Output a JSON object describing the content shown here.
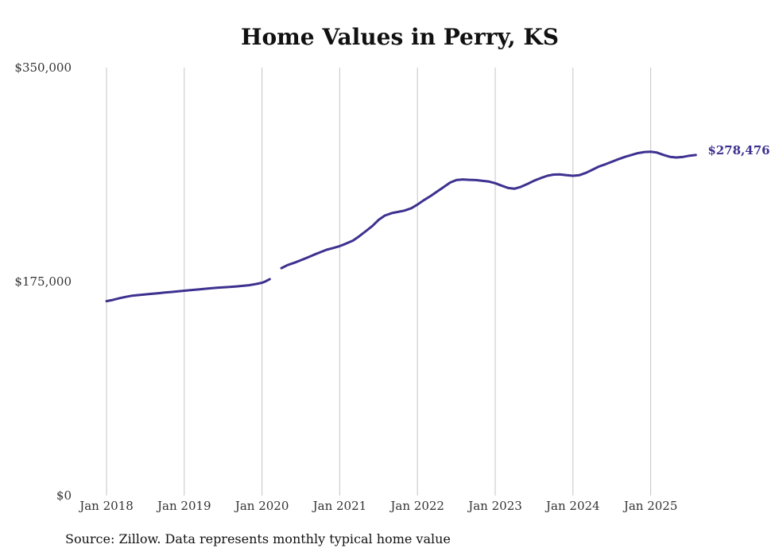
{
  "chart_data": {
    "type": "line",
    "title": "Home Values in Perry, KS",
    "xlabel": "",
    "ylabel": "",
    "ylim": [
      0,
      350000
    ],
    "y_ticks": [
      "$350,000",
      "$175,000",
      "$0"
    ],
    "y_tick_values": [
      350000,
      175000,
      0
    ],
    "x_ticks": [
      "Jan 2018",
      "Jan 2019",
      "Jan 2020",
      "Jan 2021",
      "Jan 2022",
      "Jan 2023",
      "Jan 2024",
      "Jan 2025"
    ],
    "x_tick_values": [
      2018.0,
      2019.0,
      2020.0,
      2021.0,
      2022.0,
      2023.0,
      2024.0,
      2025.0
    ],
    "xlim": [
      2018.0,
      2025.58
    ],
    "grid": "vertical",
    "line_color": "#3d3190",
    "end_label": "$278,476",
    "series": [
      {
        "segments": [
          [
            [
              2018.0,
              159000
            ],
            [
              2018.08,
              160000
            ],
            [
              2018.17,
              161500
            ],
            [
              2018.25,
              162500
            ],
            [
              2018.33,
              163500
            ],
            [
              2018.42,
              164000
            ],
            [
              2018.5,
              164500
            ],
            [
              2018.58,
              165000
            ],
            [
              2018.67,
              165500
            ],
            [
              2018.75,
              166000
            ],
            [
              2018.83,
              166500
            ],
            [
              2018.92,
              167000
            ],
            [
              2019.0,
              167500
            ],
            [
              2019.08,
              168000
            ],
            [
              2019.17,
              168500
            ],
            [
              2019.25,
              169000
            ],
            [
              2019.33,
              169500
            ],
            [
              2019.42,
              170000
            ],
            [
              2019.5,
              170300
            ],
            [
              2019.58,
              170600
            ],
            [
              2019.67,
              171000
            ],
            [
              2019.75,
              171500
            ],
            [
              2019.83,
              172000
            ],
            [
              2019.92,
              173000
            ],
            [
              2020.0,
              174000
            ],
            [
              2020.04,
              175000
            ],
            [
              2020.1,
              177000
            ]
          ],
          [
            [
              2020.25,
              186000
            ],
            [
              2020.33,
              188500
            ],
            [
              2020.42,
              190500
            ],
            [
              2020.5,
              192500
            ],
            [
              2020.58,
              194500
            ],
            [
              2020.67,
              197000
            ],
            [
              2020.75,
              199000
            ],
            [
              2020.83,
              201000
            ],
            [
              2020.92,
              202500
            ],
            [
              2021.0,
              204000
            ],
            [
              2021.08,
              206000
            ],
            [
              2021.17,
              208500
            ],
            [
              2021.25,
              212000
            ],
            [
              2021.33,
              216000
            ],
            [
              2021.42,
              220500
            ],
            [
              2021.5,
              225500
            ],
            [
              2021.58,
              229000
            ],
            [
              2021.67,
              231000
            ],
            [
              2021.75,
              232000
            ],
            [
              2021.83,
              233000
            ],
            [
              2021.92,
              235000
            ],
            [
              2022.0,
              238000
            ],
            [
              2022.08,
              241500
            ],
            [
              2022.17,
              245000
            ],
            [
              2022.25,
              248500
            ],
            [
              2022.33,
              252000
            ],
            [
              2022.42,
              256000
            ],
            [
              2022.5,
              258000
            ],
            [
              2022.58,
              258500
            ],
            [
              2022.67,
              258200
            ],
            [
              2022.75,
              258000
            ],
            [
              2022.83,
              257500
            ],
            [
              2022.92,
              256800
            ],
            [
              2023.0,
              255500
            ],
            [
              2023.08,
              253500
            ],
            [
              2023.17,
              251500
            ],
            [
              2023.25,
              251000
            ],
            [
              2023.33,
              252500
            ],
            [
              2023.42,
              255000
            ],
            [
              2023.5,
              257500
            ],
            [
              2023.58,
              259500
            ],
            [
              2023.67,
              261500
            ],
            [
              2023.75,
              262500
            ],
            [
              2023.83,
              262600
            ],
            [
              2023.92,
              262000
            ],
            [
              2024.0,
              261500
            ],
            [
              2024.08,
              262000
            ],
            [
              2024.17,
              264000
            ],
            [
              2024.25,
              266500
            ],
            [
              2024.33,
              269000
            ],
            [
              2024.42,
              271000
            ],
            [
              2024.5,
              273000
            ],
            [
              2024.58,
              275000
            ],
            [
              2024.67,
              277000
            ],
            [
              2024.75,
              278500
            ],
            [
              2024.83,
              280000
            ],
            [
              2024.92,
              281000
            ],
            [
              2025.0,
              281200
            ],
            [
              2025.08,
              280500
            ],
            [
              2025.17,
              278500
            ],
            [
              2025.25,
              277000
            ],
            [
              2025.33,
              276500
            ],
            [
              2025.42,
              277000
            ],
            [
              2025.5,
              278000
            ],
            [
              2025.58,
              278476
            ]
          ]
        ]
      }
    ]
  },
  "source_note": "Source: Zillow. Data represents monthly typical home value"
}
